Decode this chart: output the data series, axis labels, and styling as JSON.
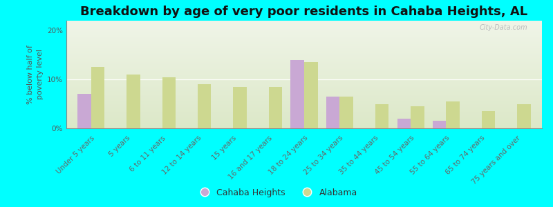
{
  "title": "Breakdown by age of very poor residents in Cahaba Heights, AL",
  "ylabel": "% below half of\npoverty level",
  "categories": [
    "Under 5 years",
    "5 years",
    "6 to 11 years",
    "12 to 14 years",
    "15 years",
    "16 and 17 years",
    "18 to 24 years",
    "25 to 34 years",
    "35 to 44 years",
    "45 to 54 years",
    "55 to 64 years",
    "65 to 74 years",
    "75 years and over"
  ],
  "cahaba_heights": [
    7.0,
    0,
    0,
    0,
    0,
    0,
    14.0,
    6.5,
    0,
    2.0,
    1.5,
    0,
    0
  ],
  "alabama": [
    12.5,
    11.0,
    10.5,
    9.0,
    8.5,
    8.5,
    13.5,
    6.5,
    5.0,
    4.5,
    5.5,
    3.5,
    5.0
  ],
  "cahaba_color": "#c9a8d4",
  "alabama_color": "#cdd890",
  "background_color": "#00ffff",
  "grad_top_color": "#f0f5e8",
  "grad_bottom_color": "#dce8c8",
  "ylim": [
    0,
    22
  ],
  "yticks": [
    0,
    10,
    20
  ],
  "ytick_labels": [
    "0%",
    "10%",
    "20%"
  ],
  "bar_width": 0.38,
  "title_fontsize": 13,
  "axis_label_fontsize": 8,
  "tick_fontsize": 7.5,
  "legend_fontsize": 9,
  "watermark": "City-Data.com"
}
